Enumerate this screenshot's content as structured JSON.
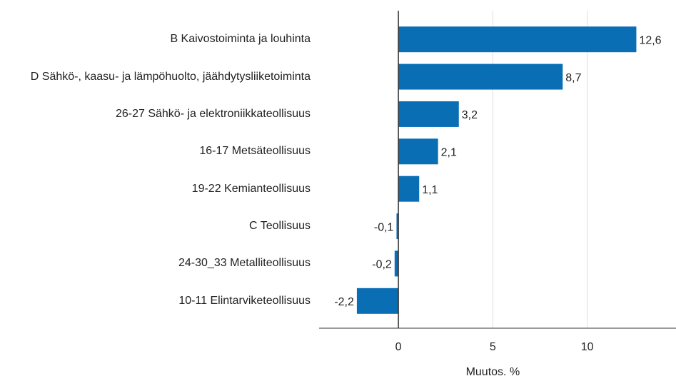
{
  "chart_data": {
    "type": "bar",
    "orientation": "horizontal",
    "categories": [
      "B Kaivostoiminta ja louhinta",
      "D Sähkö-, kaasu- ja lämpöhuolto, jäähdytysliiketoiminta",
      "26-27 Sähkö- ja elektroniikkateollisuus",
      "16-17 Metsäteollisuus",
      "19-22 Kemianteollisuus",
      "C Teollisuus",
      "24-30_33 Metalliteollisuus",
      "10-11 Elintarviketeollisuus"
    ],
    "values": [
      12.6,
      8.7,
      3.2,
      2.1,
      1.1,
      -0.1,
      -0.2,
      -2.2
    ],
    "value_labels": [
      "12,6",
      "8,7",
      "3,2",
      "2,1",
      "1,1",
      "-0,1",
      "-0,2",
      "-2,2"
    ],
    "color": "#0a6eb4",
    "xlim": [
      -4.2,
      14.7
    ],
    "xticks": [
      0,
      5,
      10
    ],
    "grid": true,
    "x_label": "Muutos. %"
  }
}
